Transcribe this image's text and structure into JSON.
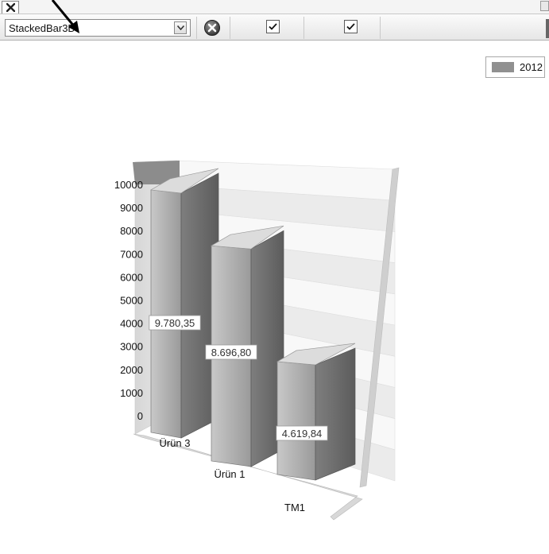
{
  "toolbar": {
    "chart_type_value": "StackedBar3D",
    "checkbox_1_checked": true,
    "checkbox_2_checked": true
  },
  "icons": {
    "tab_close": "close-icon",
    "dropdown": "chevron-down-icon",
    "clear": "clear-icon",
    "checkbox": "checkmark-icon"
  },
  "chart_data": {
    "type": "bar",
    "style": "3d",
    "categories": [
      "Ürün 3",
      "Ürün 1",
      "TM1"
    ],
    "series": [
      {
        "name": "2012",
        "values": [
          9780.35,
          8696.8,
          4619.84
        ],
        "labels": [
          "9.780,35",
          "8.696,80",
          "4.619,84"
        ],
        "color": "#909090"
      }
    ],
    "yticks": [
      "0",
      "1000",
      "2000",
      "3000",
      "4000",
      "5000",
      "6000",
      "7000",
      "8000",
      "9000",
      "10000"
    ],
    "ylim": [
      0,
      10000
    ],
    "grid": true,
    "legend": "top-right",
    "title": "",
    "xlabel": "",
    "ylabel": ""
  }
}
